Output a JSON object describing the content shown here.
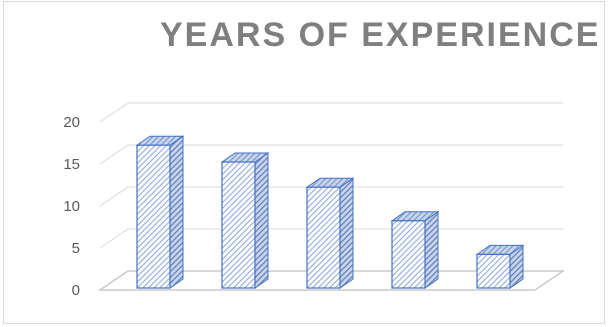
{
  "chart_data": {
    "type": "bar",
    "title": "YEARS OF EXPERIENCE",
    "categories": [
      "",
      "",
      "",
      "",
      ""
    ],
    "values": [
      17,
      15,
      12,
      8,
      4
    ],
    "xlabel": "",
    "ylabel": "",
    "ylim": [
      0,
      20
    ],
    "yticks": [
      "0",
      "5",
      "10",
      "15",
      "20"
    ],
    "grid": true,
    "legend": "none",
    "style": "3d-column-hatched"
  },
  "colors": {
    "bar_stroke": "#4472c4",
    "bar_hatch": "#8faadc",
    "bar_top": "#7393c9",
    "bar_side": "#5b7cb8",
    "grid": "#d9d9d9",
    "title": "#7f7f7f",
    "axis_text": "#595959"
  }
}
